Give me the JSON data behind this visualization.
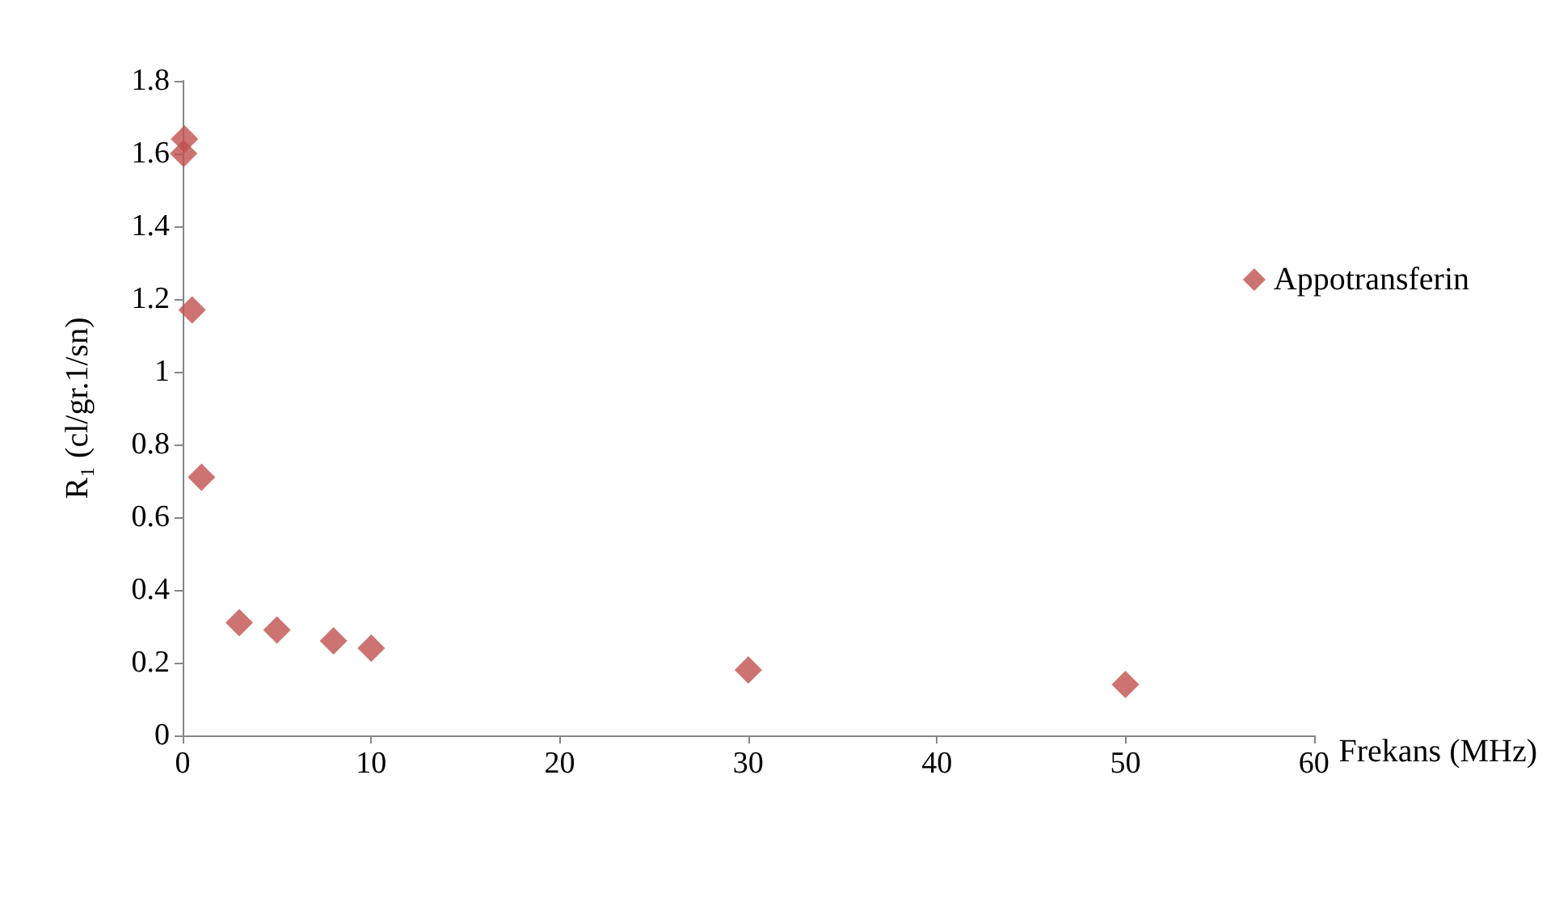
{
  "chart_data": {
    "type": "scatter",
    "xlabel": "Frekans (MHz)",
    "ylabel": "R₁ (cl/gr.1/sn)",
    "series": [
      {
        "name": "Appotransferin",
        "color": "#c0504d",
        "x": [
          0.1,
          0.05,
          0.5,
          1,
          3,
          5,
          8,
          10,
          30,
          50
        ],
        "values": [
          1.64,
          1.6,
          1.17,
          0.71,
          0.31,
          0.29,
          0.26,
          0.24,
          0.18,
          0.14
        ]
      }
    ],
    "xlim": [
      0,
      60
    ],
    "xticks": [
      0,
      10,
      20,
      30,
      40,
      50,
      60
    ],
    "ylim": [
      0,
      1.8
    ],
    "yticks": [
      0,
      0.2,
      0.4,
      0.6,
      0.8,
      1,
      1.2,
      1.4,
      1.6,
      1.8
    ],
    "marker": "diamond",
    "grid": false,
    "legend": "right"
  }
}
